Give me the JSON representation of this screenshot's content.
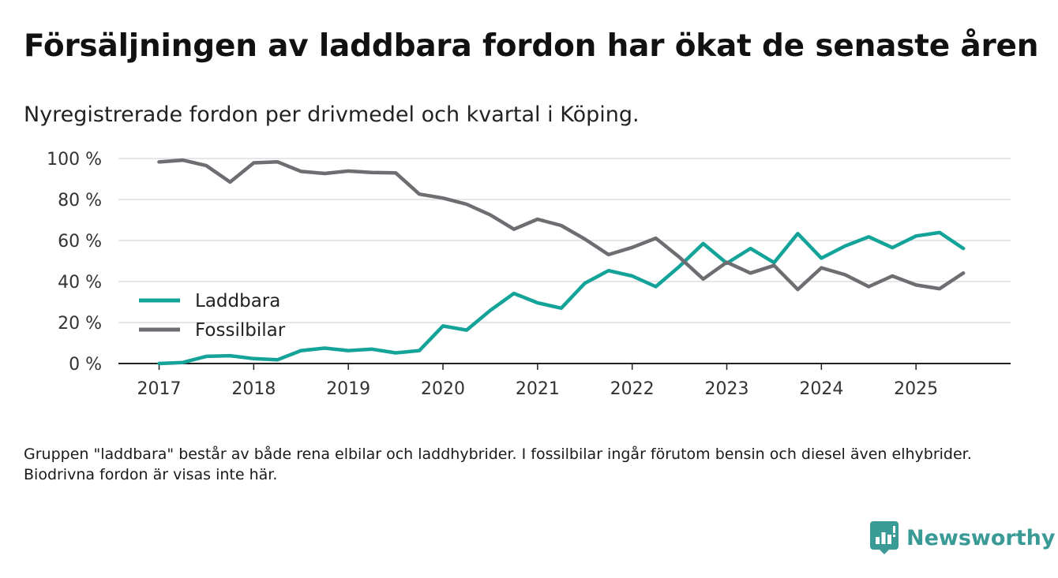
{
  "header": {
    "title": "Försäljningen av laddbara fordon har ökat de senaste åren",
    "subtitle": "Nyregistrerade fordon per drivmedel och kvartal i Köping."
  },
  "footnote": "Gruppen \"laddbara\" består av både rena elbilar och laddhybrider. I fossilbilar ingår förutom bensin och diesel även elhybrider. Biodrivna fordon är visas inte här.",
  "brand": {
    "name": "Newsworthy",
    "color": "#3a9a95"
  },
  "chart_data": {
    "type": "line",
    "title": "Försäljningen av laddbara fordon har ökat de senaste åren",
    "subtitle": "Nyregistrerade fordon per drivmedel och kvartal i Köping.",
    "xlabel": "",
    "ylabel": "",
    "x_start_year": 2017,
    "x_step": 0.25,
    "xlim": [
      2016.57,
      2026.0
    ],
    "ylim": [
      0,
      100
    ],
    "y_ticks": [
      {
        "value": 0,
        "label": "0 %"
      },
      {
        "value": 20,
        "label": "20 %"
      },
      {
        "value": 40,
        "label": "40 %"
      },
      {
        "value": 60,
        "label": "60 %"
      },
      {
        "value": 80,
        "label": "80 %"
      },
      {
        "value": 100,
        "label": "100 %"
      }
    ],
    "x_ticks": [
      {
        "value": 2017,
        "label": "2017"
      },
      {
        "value": 2018,
        "label": "2018"
      },
      {
        "value": 2019,
        "label": "2019"
      },
      {
        "value": 2020,
        "label": "2020"
      },
      {
        "value": 2021,
        "label": "2021"
      },
      {
        "value": 2022,
        "label": "2022"
      },
      {
        "value": 2023,
        "label": "2023"
      },
      {
        "value": 2024,
        "label": "2024"
      },
      {
        "value": 2025,
        "label": "2025"
      }
    ],
    "grid": true,
    "legend_position": "middle-left",
    "series": [
      {
        "name": "Laddbara",
        "color": "#13a399",
        "values": [
          0,
          0.5,
          3.5,
          3.8,
          2.4,
          1.8,
          6.3,
          7.5,
          6.3,
          7,
          5.2,
          6.3,
          18.3,
          16.3,
          25.9,
          34.2,
          29.6,
          27,
          39.2,
          45.3,
          42.7,
          37.5,
          47.4,
          58.5,
          48.9,
          56.1,
          49.2,
          63.4,
          51.4,
          57.3,
          61.8,
          56.5,
          62.2,
          63.9,
          56.1
        ]
      },
      {
        "name": "Fossilbilar",
        "color": "#6d6d72",
        "values": [
          98.3,
          99.2,
          96.5,
          88.5,
          97.9,
          98.4,
          93.7,
          92.7,
          93.9,
          93.2,
          93,
          82.6,
          80.7,
          77.7,
          72.5,
          65.5,
          70.4,
          67.3,
          60.7,
          53.1,
          56.6,
          61.1,
          51.8,
          41.2,
          49.4,
          44.1,
          47.8,
          36.1,
          46.7,
          43.3,
          37.5,
          42.7,
          38.3,
          36.5,
          44.1
        ]
      }
    ]
  }
}
